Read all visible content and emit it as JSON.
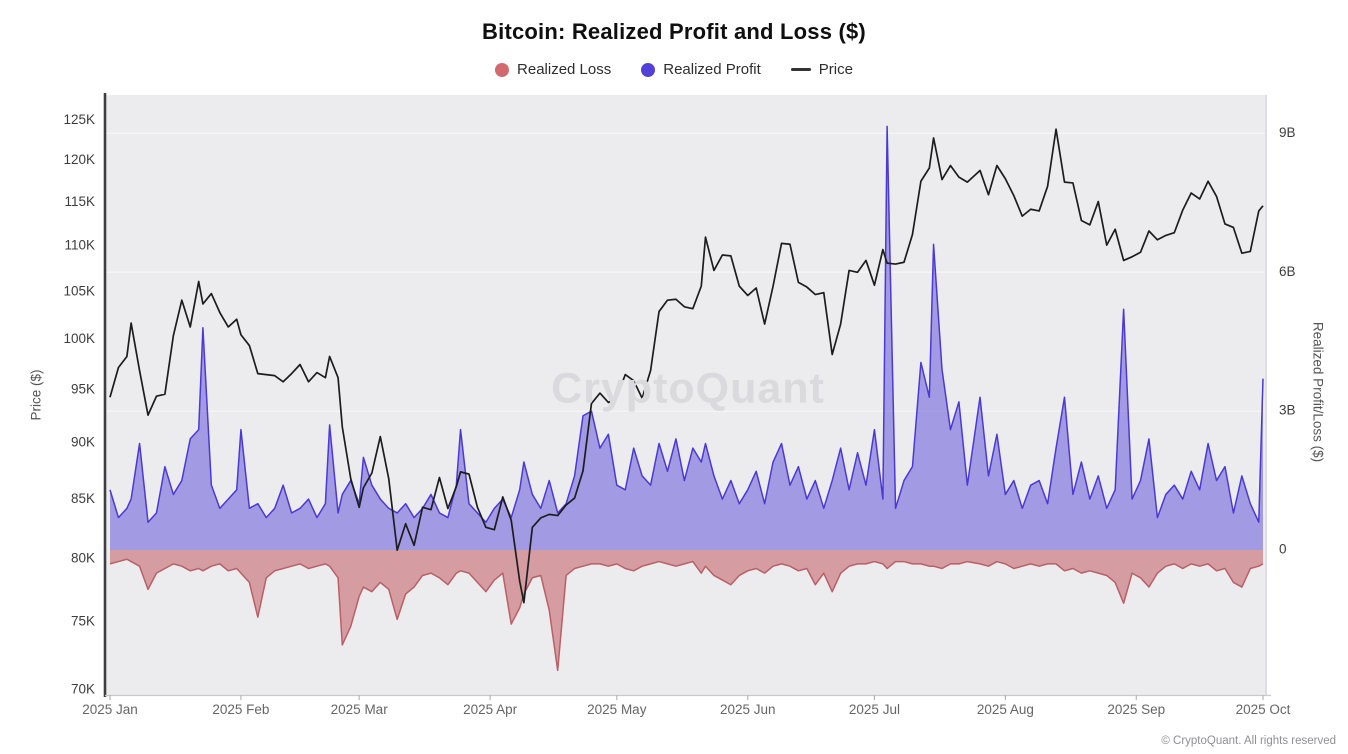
{
  "header": {
    "title": "Bitcoin: Realized Profit and Loss ($)"
  },
  "legend": [
    {
      "label": "Realized Loss",
      "marker": "circle",
      "color": "#d2696e"
    },
    {
      "label": "Realized Profit",
      "marker": "circle",
      "color": "#5241d8"
    },
    {
      "label": "Price",
      "marker": "line",
      "color": "#333333"
    }
  ],
  "watermark": "CryptoQuant",
  "footer": "© CryptoQuant. All rights reserved",
  "colors": {
    "plot_background": "#ececee",
    "grid_line": "#f6f6f8",
    "left_axis_line": "#3f3f41",
    "light_axis_line": "#c9c9cc",
    "price_line": "#1d1d1f",
    "profit_line": "#4b39d6",
    "profit_fill": "rgba(88,72,214,0.50)",
    "loss_line": "#b95f66",
    "loss_fill": "rgba(192,84,92,0.52)",
    "tick_label": "#3d3d3d",
    "month_label": "#666666"
  },
  "chart_data": {
    "type": "area+line",
    "title": "Bitcoin: Realized Profit and Loss ($)",
    "series_names": [
      "Realized Loss",
      "Realized Profit",
      "Price"
    ],
    "x_axis": {
      "unit": "day offset from 2025-01-01",
      "months": [
        {
          "label": "2025 Jan",
          "day": 0
        },
        {
          "label": "2025 Feb",
          "day": 31
        },
        {
          "label": "2025 Mar",
          "day": 59
        },
        {
          "label": "2025 Apr",
          "day": 90
        },
        {
          "label": "2025 May",
          "day": 120
        },
        {
          "label": "2025 Jun",
          "day": 151
        },
        {
          "label": "2025 Jul",
          "day": 181
        },
        {
          "label": "2025 Aug",
          "day": 212
        },
        {
          "label": "2025 Sep",
          "day": 243
        },
        {
          "label": "2025 Oct",
          "day": 273
        }
      ]
    },
    "price_axis": {
      "title": "Price ($)",
      "scale": "log",
      "side": "left",
      "ticks": [
        {
          "label": "125K",
          "value": 125
        },
        {
          "label": "120K",
          "value": 120
        },
        {
          "label": "115K",
          "value": 115
        },
        {
          "label": "110K",
          "value": 110
        },
        {
          "label": "105K",
          "value": 105
        },
        {
          "label": "100K",
          "value": 100
        },
        {
          "label": "95K",
          "value": 95
        },
        {
          "label": "90K",
          "value": 90
        },
        {
          "label": "85K",
          "value": 85
        },
        {
          "label": "80K",
          "value": 80
        },
        {
          "label": "75K",
          "value": 75
        },
        {
          "label": "70K",
          "value": 70
        }
      ],
      "unit": "thousand USD"
    },
    "pl_axis": {
      "title": "Realized Profit/Loss ($)",
      "scale": "linear",
      "side": "right",
      "ticks": [
        {
          "label": "9B",
          "value": 9
        },
        {
          "label": "6B",
          "value": 6
        },
        {
          "label": "3B",
          "value": 3
        },
        {
          "label": "0",
          "value": 0
        }
      ],
      "unit": "billion USD"
    },
    "grid": "horizontal-on-pl-ticks",
    "legend_position": "top-center",
    "points_format": [
      "day",
      "price_kusd",
      "realized_profit_busd",
      "realized_loss_busd"
    ],
    "points": [
      [
        0,
        94.3,
        1.3,
        -0.3
      ],
      [
        2,
        97.2,
        0.7,
        -0.25
      ],
      [
        4,
        98.3,
        0.9,
        -0.2
      ],
      [
        5,
        101.7,
        1.1,
        -0.25
      ],
      [
        7,
        96.9,
        2.3,
        -0.35
      ],
      [
        9,
        92.6,
        0.6,
        -0.85
      ],
      [
        11,
        94.4,
        0.8,
        -0.5
      ],
      [
        13,
        94.6,
        1.8,
        -0.4
      ],
      [
        15,
        100.4,
        1.2,
        -0.3
      ],
      [
        17,
        104.1,
        1.5,
        -0.35
      ],
      [
        19,
        101.3,
        2.4,
        -0.45
      ],
      [
        21,
        106.1,
        2.6,
        -0.4
      ],
      [
        22,
        103.7,
        4.8,
        -0.45
      ],
      [
        24,
        104.8,
        1.4,
        -0.35
      ],
      [
        26,
        102.8,
        0.9,
        -0.3
      ],
      [
        28,
        101.3,
        1.1,
        -0.45
      ],
      [
        30,
        102.1,
        1.3,
        -0.4
      ],
      [
        31,
        100.5,
        2.6,
        -0.5
      ],
      [
        33,
        99.4,
        0.9,
        -0.7
      ],
      [
        35,
        96.6,
        1.0,
        -1.45
      ],
      [
        37,
        96.5,
        0.7,
        -0.6
      ],
      [
        39,
        96.4,
        0.9,
        -0.45
      ],
      [
        41,
        95.8,
        1.4,
        -0.4
      ],
      [
        43,
        96.6,
        0.8,
        -0.35
      ],
      [
        45,
        97.5,
        0.9,
        -0.3
      ],
      [
        47,
        95.8,
        1.1,
        -0.4
      ],
      [
        49,
        96.7,
        0.7,
        -0.35
      ],
      [
        51,
        96.2,
        1.0,
        -0.3
      ],
      [
        52,
        98.3,
        2.7,
        -0.35
      ],
      [
        54,
        96.2,
        0.8,
        -0.6
      ],
      [
        55,
        91.5,
        1.2,
        -2.05
      ],
      [
        57,
        86.8,
        1.5,
        -1.65
      ],
      [
        59,
        84.3,
        1.0,
        -1.0
      ],
      [
        60,
        86.0,
        2.0,
        -0.8
      ],
      [
        62,
        87.3,
        1.4,
        -0.9
      ],
      [
        64,
        90.6,
        1.1,
        -0.7
      ],
      [
        66,
        86.8,
        0.9,
        -0.85
      ],
      [
        68,
        80.7,
        0.8,
        -1.5
      ],
      [
        70,
        82.9,
        1.0,
        -0.95
      ],
      [
        72,
        81.1,
        0.7,
        -0.8
      ],
      [
        74,
        84.3,
        0.9,
        -0.55
      ],
      [
        76,
        84.1,
        1.2,
        -0.5
      ],
      [
        78,
        86.9,
        0.8,
        -0.6
      ],
      [
        80,
        84.2,
        0.7,
        -0.75
      ],
      [
        82,
        86.1,
        1.4,
        -0.5
      ],
      [
        83,
        87.4,
        2.6,
        -0.45
      ],
      [
        85,
        87.2,
        1.0,
        -0.5
      ],
      [
        87,
        84.3,
        0.8,
        -0.7
      ],
      [
        89,
        82.6,
        0.6,
        -0.9
      ],
      [
        91,
        82.4,
        0.9,
        -0.65
      ],
      [
        93,
        85.2,
        1.1,
        -0.5
      ],
      [
        95,
        83.2,
        0.7,
        -1.6
      ],
      [
        97,
        78.2,
        1.3,
        -1.25
      ],
      [
        98,
        76.5,
        1.9,
        -0.95
      ],
      [
        100,
        82.6,
        1.2,
        -0.6
      ],
      [
        102,
        83.4,
        0.9,
        -0.55
      ],
      [
        104,
        83.7,
        1.5,
        -1.3
      ],
      [
        106,
        83.6,
        0.8,
        -2.6
      ],
      [
        108,
        84.5,
        1.0,
        -0.55
      ],
      [
        110,
        85.1,
        1.6,
        -0.4
      ],
      [
        112,
        87.5,
        2.9,
        -0.35
      ],
      [
        114,
        93.7,
        3.0,
        -0.3
      ],
      [
        116,
        94.7,
        2.2,
        -0.3
      ],
      [
        118,
        93.8,
        2.5,
        -0.35
      ],
      [
        120,
        94.3,
        1.4,
        -0.3
      ],
      [
        122,
        96.5,
        1.3,
        -0.4
      ],
      [
        124,
        95.9,
        2.2,
        -0.45
      ],
      [
        126,
        94.2,
        1.6,
        -0.35
      ],
      [
        128,
        96.9,
        1.4,
        -0.3
      ],
      [
        130,
        102.9,
        2.3,
        -0.25
      ],
      [
        132,
        104.1,
        1.7,
        -0.3
      ],
      [
        134,
        104.2,
        2.4,
        -0.35
      ],
      [
        136,
        103.4,
        1.5,
        -0.3
      ],
      [
        138,
        103.2,
        2.2,
        -0.25
      ],
      [
        140,
        105.6,
        1.9,
        -0.5
      ],
      [
        141,
        111.0,
        2.3,
        -0.35
      ],
      [
        143,
        107.3,
        1.6,
        -0.55
      ],
      [
        145,
        109.0,
        1.1,
        -0.65
      ],
      [
        147,
        108.9,
        1.5,
        -0.75
      ],
      [
        149,
        105.6,
        1.0,
        -0.55
      ],
      [
        151,
        104.6,
        1.3,
        -0.45
      ],
      [
        153,
        105.4,
        1.7,
        -0.4
      ],
      [
        155,
        101.6,
        1.0,
        -0.5
      ],
      [
        157,
        105.6,
        1.9,
        -0.35
      ],
      [
        159,
        110.3,
        2.3,
        -0.3
      ],
      [
        161,
        110.2,
        1.4,
        -0.35
      ],
      [
        163,
        106.0,
        1.8,
        -0.45
      ],
      [
        165,
        105.5,
        1.1,
        -0.4
      ],
      [
        167,
        104.7,
        1.5,
        -0.75
      ],
      [
        169,
        104.9,
        0.9,
        -0.5
      ],
      [
        171,
        98.5,
        1.5,
        -0.9
      ],
      [
        173,
        101.6,
        2.2,
        -0.5
      ],
      [
        175,
        107.3,
        1.3,
        -0.35
      ],
      [
        177,
        107.1,
        2.1,
        -0.3
      ],
      [
        179,
        108.4,
        1.4,
        -0.3
      ],
      [
        181,
        105.7,
        2.6,
        -0.25
      ],
      [
        183,
        109.6,
        1.1,
        -0.3
      ],
      [
        184,
        108.1,
        9.15,
        -0.4
      ],
      [
        186,
        108.0,
        0.9,
        -0.25
      ],
      [
        188,
        108.2,
        1.5,
        -0.25
      ],
      [
        190,
        111.3,
        1.8,
        -0.3
      ],
      [
        192,
        117.5,
        4.05,
        -0.3
      ],
      [
        194,
        119.1,
        3.3,
        -0.35
      ],
      [
        195,
        122.8,
        6.6,
        -0.35
      ],
      [
        197,
        117.7,
        3.9,
        -0.4
      ],
      [
        199,
        119.4,
        2.6,
        -0.3
      ],
      [
        201,
        118.0,
        3.2,
        -0.3
      ],
      [
        203,
        117.4,
        1.4,
        -0.25
      ],
      [
        206,
        118.8,
        3.3,
        -0.3
      ],
      [
        208,
        115.9,
        1.6,
        -0.35
      ],
      [
        210,
        119.4,
        2.5,
        -0.25
      ],
      [
        212,
        117.8,
        1.2,
        -0.3
      ],
      [
        214,
        115.8,
        1.5,
        -0.4
      ],
      [
        216,
        113.4,
        0.9,
        -0.35
      ],
      [
        218,
        114.2,
        1.4,
        -0.3
      ],
      [
        220,
        114.0,
        1.5,
        -0.35
      ],
      [
        222,
        116.9,
        1.0,
        -0.3
      ],
      [
        224,
        123.9,
        2.2,
        -0.3
      ],
      [
        226,
        117.4,
        3.3,
        -0.45
      ],
      [
        228,
        117.3,
        1.2,
        -0.4
      ],
      [
        230,
        112.9,
        1.9,
        -0.5
      ],
      [
        232,
        112.4,
        1.1,
        -0.45
      ],
      [
        234,
        115.1,
        1.6,
        -0.5
      ],
      [
        236,
        110.1,
        0.9,
        -0.55
      ],
      [
        238,
        111.9,
        1.3,
        -0.7
      ],
      [
        240,
        108.4,
        5.2,
        -1.15
      ],
      [
        242,
        108.8,
        1.1,
        -0.5
      ],
      [
        244,
        109.3,
        1.5,
        -0.6
      ],
      [
        246,
        111.7,
        2.4,
        -0.8
      ],
      [
        248,
        110.7,
        0.7,
        -0.5
      ],
      [
        250,
        111.2,
        1.2,
        -0.35
      ],
      [
        252,
        111.5,
        1.4,
        -0.3
      ],
      [
        254,
        114.1,
        1.1,
        -0.4
      ],
      [
        256,
        116.1,
        1.7,
        -0.3
      ],
      [
        258,
        115.4,
        1.3,
        -0.35
      ],
      [
        260,
        117.5,
        2.3,
        -0.3
      ],
      [
        262,
        115.7,
        1.5,
        -0.45
      ],
      [
        264,
        112.5,
        1.8,
        -0.4
      ],
      [
        266,
        112.1,
        0.8,
        -0.7
      ],
      [
        268,
        109.2,
        1.6,
        -0.8
      ],
      [
        270,
        109.4,
        1.0,
        -0.4
      ],
      [
        272,
        114.0,
        0.6,
        -0.35
      ],
      [
        273,
        114.6,
        3.7,
        -0.3
      ]
    ]
  }
}
